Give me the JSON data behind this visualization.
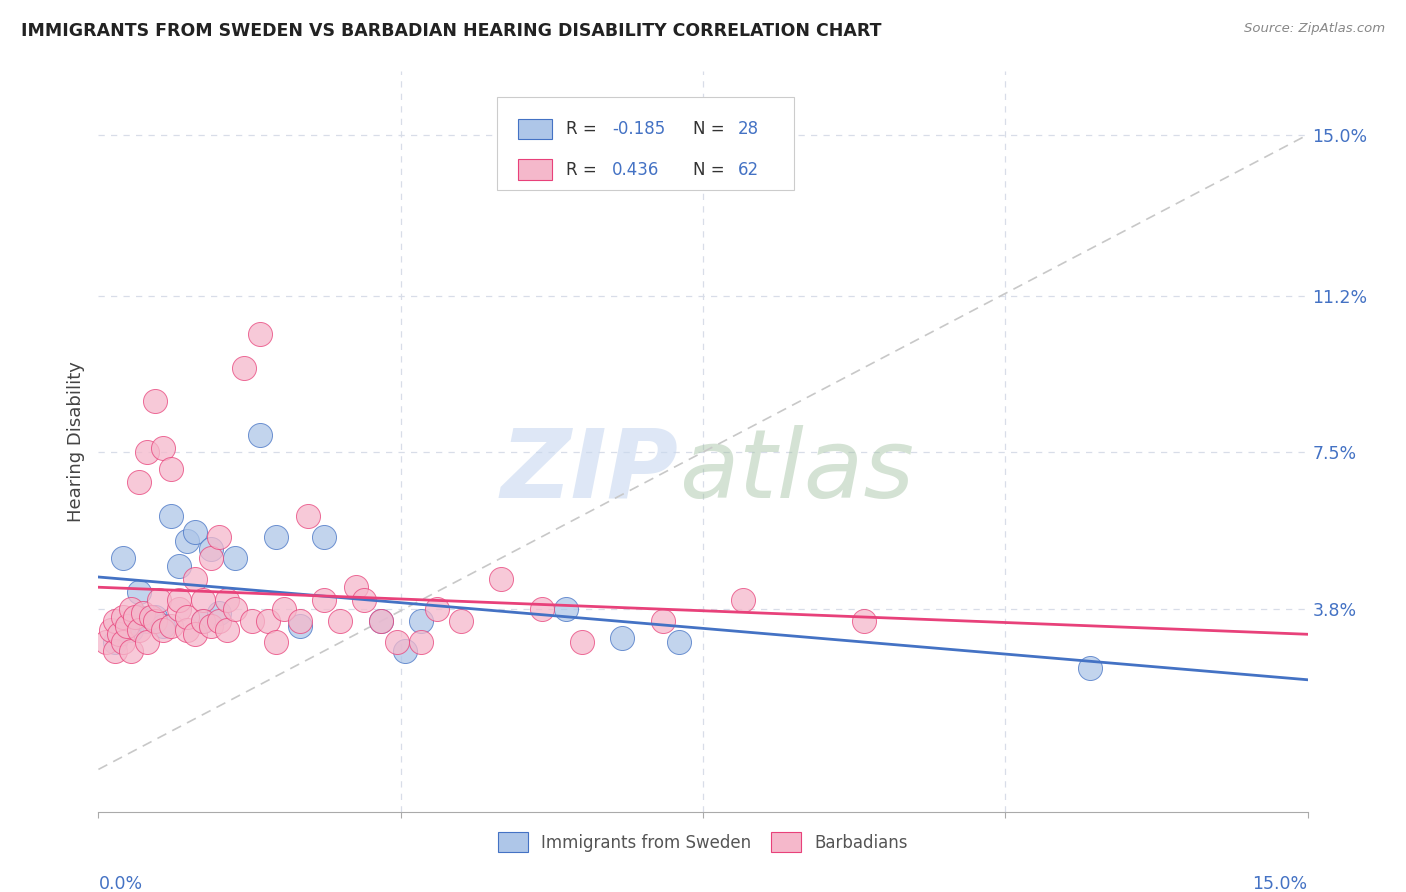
{
  "title": "IMMIGRANTS FROM SWEDEN VS BARBADIAN HEARING DISABILITY CORRELATION CHART",
  "source": "Source: ZipAtlas.com",
  "ylabel": "Hearing Disability",
  "ytick_labels": [
    "3.8%",
    "7.5%",
    "11.2%",
    "15.0%"
  ],
  "ytick_vals": [
    3.8,
    7.5,
    11.2,
    15.0
  ],
  "xlim": [
    0.0,
    15.0
  ],
  "ylim": [
    -1.0,
    16.5
  ],
  "color_sweden": "#aec6e8",
  "color_barbados": "#f5b8cb",
  "color_trendline_sweden": "#4472c4",
  "color_trendline_barbados": "#e8417a",
  "color_diagonal": "#c8c8c8",
  "color_axis_labels": "#4472c4",
  "color_grid": "#d8dde8",
  "sweden_x": [
    0.2,
    0.3,
    0.3,
    0.4,
    0.5,
    0.5,
    0.6,
    0.7,
    0.8,
    0.9,
    1.0,
    1.1,
    1.2,
    1.3,
    1.4,
    1.5,
    1.7,
    2.0,
    2.2,
    2.5,
    2.8,
    3.5,
    3.8,
    4.0,
    5.8,
    7.2,
    12.3,
    6.5
  ],
  "sweden_y": [
    3.0,
    3.3,
    5.0,
    3.3,
    3.6,
    4.2,
    3.5,
    3.6,
    3.4,
    6.0,
    4.8,
    5.4,
    5.6,
    3.5,
    5.2,
    3.7,
    5.0,
    7.9,
    5.5,
    3.4,
    5.5,
    3.5,
    2.8,
    3.5,
    3.8,
    3.0,
    2.4,
    3.1
  ],
  "barbados_x": [
    0.1,
    0.15,
    0.2,
    0.2,
    0.25,
    0.3,
    0.3,
    0.35,
    0.4,
    0.4,
    0.45,
    0.5,
    0.5,
    0.55,
    0.6,
    0.6,
    0.65,
    0.7,
    0.7,
    0.75,
    0.8,
    0.8,
    0.9,
    0.9,
    1.0,
    1.0,
    1.1,
    1.1,
    1.2,
    1.2,
    1.3,
    1.3,
    1.4,
    1.4,
    1.5,
    1.5,
    1.6,
    1.6,
    1.7,
    1.8,
    1.9,
    2.0,
    2.1,
    2.2,
    2.3,
    2.5,
    2.6,
    2.8,
    3.0,
    3.2,
    3.3,
    3.5,
    3.7,
    4.0,
    4.2,
    4.5,
    5.0,
    5.5,
    6.0,
    7.0,
    8.0,
    9.5
  ],
  "barbados_y": [
    3.0,
    3.3,
    2.8,
    3.5,
    3.2,
    3.6,
    3.0,
    3.4,
    3.8,
    2.8,
    3.6,
    6.8,
    3.3,
    3.7,
    7.5,
    3.0,
    3.6,
    8.7,
    3.5,
    4.0,
    3.3,
    7.6,
    3.4,
    7.1,
    3.8,
    4.0,
    3.3,
    3.6,
    4.5,
    3.2,
    4.0,
    3.5,
    5.0,
    3.4,
    5.5,
    3.5,
    4.0,
    3.3,
    3.8,
    9.5,
    3.5,
    10.3,
    3.5,
    3.0,
    3.8,
    3.5,
    6.0,
    4.0,
    3.5,
    4.3,
    4.0,
    3.5,
    3.0,
    3.0,
    3.8,
    3.5,
    4.5,
    3.8,
    3.0,
    3.5,
    4.0,
    3.5
  ],
  "legend_r_sweden": "-0.185",
  "legend_n_sweden": "28",
  "legend_r_barbados": "0.436",
  "legend_n_barbados": "62"
}
